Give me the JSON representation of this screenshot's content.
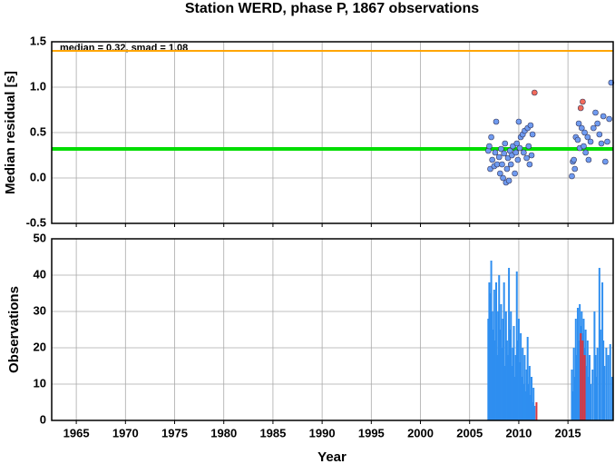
{
  "chart_data": [
    {
      "type": "scatter",
      "title": "Station WERD, phase P, 1867 observations",
      "y_label": "Median residual [s]",
      "annotation": "median = 0.32, smad = 1.08",
      "xlim": [
        1962.5,
        2019.6
      ],
      "xticks": [
        1965,
        1970,
        1975,
        1980,
        1985,
        1990,
        1995,
        2000,
        2005,
        2010,
        2015
      ],
      "ylim": [
        -0.5,
        1.5
      ],
      "yticks": [
        -0.5,
        {
          "value": 0,
          "label": "0.0"
        },
        0.5,
        {
          "value": 1,
          "label": "1.0"
        },
        1.5
      ],
      "grid": true,
      "hlines": [
        {
          "value": 1.4,
          "color": "#ffa500"
        },
        {
          "value": 0.32,
          "color": "#00dd00"
        }
      ],
      "series": [
        {
          "color": "#6f9bf0",
          "x": [
            2006.9,
            2007.0,
            2007.1,
            2007.2,
            2007.3,
            2007.5,
            2007.6,
            2007.7,
            2007.8,
            2008.0,
            2008.1,
            2008.2,
            2008.3,
            2008.4,
            2008.5,
            2008.6,
            2008.7,
            2008.8,
            2008.9,
            2009.0,
            2009.1,
            2009.2,
            2009.3,
            2009.4,
            2009.6,
            2009.7,
            2009.8,
            2009.9,
            2010.0,
            2010.1,
            2010.2,
            2010.4,
            2010.5,
            2010.6,
            2010.8,
            2010.9,
            2011.0,
            2011.1,
            2011.2,
            2011.3,
            2011.4,
            2015.4,
            2015.5,
            2015.6,
            2015.7,
            2015.8,
            2016.0,
            2016.1,
            2016.2,
            2016.4,
            2016.6,
            2016.7,
            2016.8,
            2017.0,
            2017.1,
            2017.3,
            2017.6,
            2017.8,
            2018.0,
            2018.2,
            2018.4,
            2018.6,
            2018.8,
            2019.0,
            2019.2,
            2019.4
          ],
          "values": [
            0.3,
            0.35,
            0.1,
            0.45,
            0.2,
            0.13,
            0.28,
            0.62,
            0.15,
            0.23,
            0.05,
            0.32,
            0.15,
            0.0,
            0.27,
            0.38,
            -0.05,
            0.1,
            0.22,
            -0.03,
            0.3,
            0.15,
            0.25,
            0.35,
            0.05,
            0.28,
            0.38,
            0.2,
            0.62,
            0.33,
            0.45,
            0.48,
            0.28,
            0.52,
            0.22,
            0.55,
            0.35,
            0.15,
            0.58,
            0.25,
            0.48,
            0.02,
            0.18,
            0.2,
            0.1,
            0.45,
            0.42,
            0.6,
            0.33,
            0.55,
            0.35,
            0.5,
            0.28,
            0.45,
            0.2,
            0.4,
            0.55,
            0.72,
            0.6,
            0.48,
            0.38,
            0.68,
            0.18,
            0.4,
            0.65,
            1.05
          ]
        },
        {
          "color": "#f26b5b",
          "x": [
            2011.6,
            2016.3,
            2016.5
          ],
          "values": [
            0.94,
            0.77,
            0.84
          ]
        }
      ]
    },
    {
      "type": "bar",
      "y_label": "Observations",
      "x_label": "Year",
      "xlim": [
        1962.5,
        2019.6
      ],
      "xticks": [
        1965,
        1970,
        1975,
        1980,
        1985,
        1990,
        1995,
        2000,
        2005,
        2010,
        2015
      ],
      "ylim": [
        0,
        50
      ],
      "yticks": [
        0,
        10,
        20,
        30,
        40,
        50
      ],
      "grid": true,
      "series": [
        {
          "color": "#2f8ff0",
          "x": [
            2006.9,
            2007.0,
            2007.1,
            2007.2,
            2007.3,
            2007.4,
            2007.5,
            2007.6,
            2007.7,
            2007.8,
            2007.9,
            2008.0,
            2008.1,
            2008.2,
            2008.3,
            2008.4,
            2008.5,
            2008.6,
            2008.7,
            2008.8,
            2008.9,
            2009.0,
            2009.1,
            2009.2,
            2009.3,
            2009.4,
            2009.5,
            2009.6,
            2009.7,
            2009.8,
            2009.9,
            2010.0,
            2010.1,
            2010.2,
            2010.3,
            2010.4,
            2010.5,
            2010.6,
            2010.7,
            2010.8,
            2010.9,
            2011.0,
            2011.1,
            2011.2,
            2011.3,
            2011.4,
            2011.5,
            2011.6,
            2015.4,
            2015.5,
            2015.6,
            2015.7,
            2015.8,
            2015.9,
            2016.0,
            2016.1,
            2016.2,
            2016.3,
            2016.4,
            2016.5,
            2016.6,
            2016.7,
            2016.8,
            2016.9,
            2017.0,
            2017.1,
            2017.2,
            2017.3,
            2017.5,
            2017.7,
            2017.8,
            2017.9,
            2018.0,
            2018.2,
            2018.3,
            2018.5,
            2018.6,
            2018.7,
            2018.9,
            2019.1,
            2019.3,
            2019.5
          ],
          "values": [
            28,
            38,
            35,
            44,
            30,
            25,
            36,
            22,
            38,
            18,
            30,
            40,
            25,
            32,
            20,
            28,
            38,
            15,
            30,
            22,
            18,
            42,
            25,
            30,
            15,
            20,
            26,
            12,
            18,
            41,
            22,
            28,
            16,
            24,
            12,
            20,
            10,
            18,
            8,
            14,
            23,
            10,
            15,
            7,
            12,
            5,
            9,
            4,
            14,
            8,
            20,
            12,
            28,
            18,
            31,
            22,
            32,
            26,
            30,
            24,
            28,
            20,
            25,
            15,
            22,
            12,
            18,
            10,
            14,
            30,
            18,
            12,
            20,
            42,
            25,
            38,
            22,
            15,
            20,
            18,
            21,
            12
          ]
        },
        {
          "color": "#d9363e",
          "x": [
            2011.8,
            2016.3,
            2016.5,
            2016.7
          ],
          "values": [
            5,
            24,
            22,
            18
          ]
        }
      ]
    }
  ]
}
